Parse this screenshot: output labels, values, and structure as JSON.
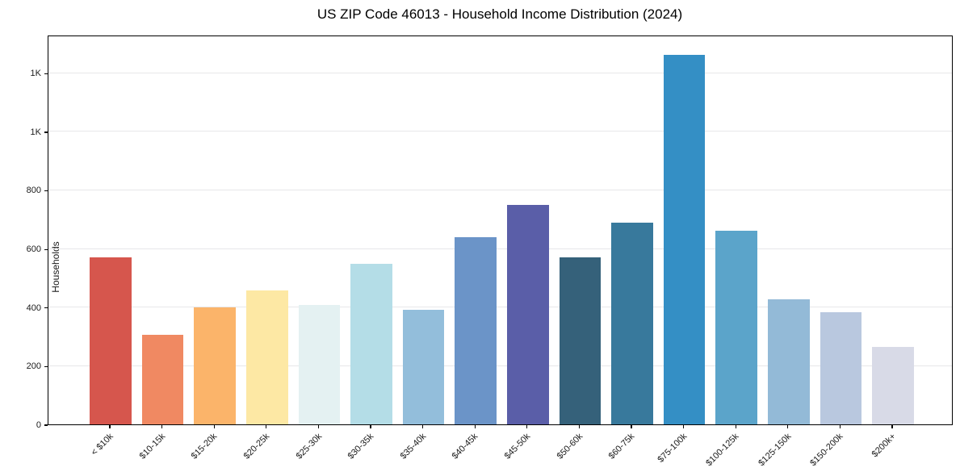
{
  "title": "US ZIP Code 46013 - Household Income Distribution (2024)",
  "chart_data": {
    "type": "bar",
    "title": "US ZIP Code 46013 - Household Income Distribution (2024)",
    "xlabel": "",
    "ylabel": "Households",
    "categories": [
      "< $10k",
      "$10-15k",
      "$15-20k",
      "$20-25k",
      "$25-30k",
      "$30-35k",
      "$35-40k",
      "$40-45k",
      "$45-50k",
      "$50-60k",
      "$60-75k",
      "$75-100k",
      "$100-125k",
      "$125-150k",
      "$150-200k",
      "$200k+"
    ],
    "values": [
      570,
      305,
      398,
      458,
      408,
      548,
      390,
      640,
      750,
      570,
      688,
      1262,
      662,
      428,
      384,
      264
    ],
    "bar_colors": [
      "#d6564d",
      "#f08962",
      "#fbb46a",
      "#fde8a4",
      "#e4f1f2",
      "#b4dde7",
      "#93bedb",
      "#6b94c8",
      "#5a5ea8",
      "#35617a",
      "#38799c",
      "#348fc5",
      "#5ba4ca",
      "#93bad7",
      "#b9c8df",
      "#d8dae7"
    ],
    "ylim": [
      0,
      1330
    ],
    "yticks": {
      "values": [
        0,
        200,
        400,
        600,
        800,
        1000,
        1200
      ],
      "labels": [
        "0",
        "200",
        "400",
        "600",
        "800",
        "1K",
        "1K"
      ]
    },
    "grid": "horizontal",
    "legend": "none"
  }
}
